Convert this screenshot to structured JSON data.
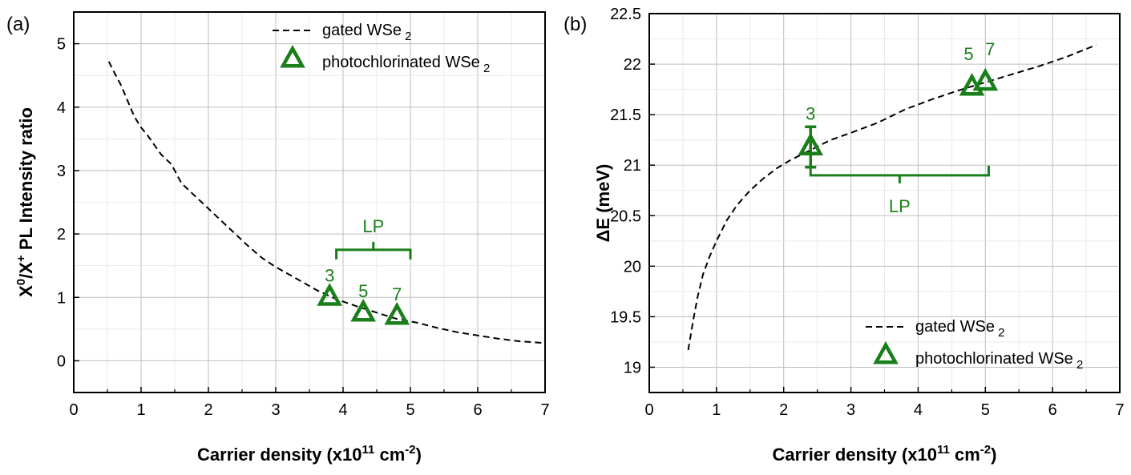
{
  "colors": {
    "marker": "#1a7f1a",
    "curve": "#000000",
    "grid": "#cfcfcf",
    "axis": "#000000"
  },
  "chart_data": [
    {
      "type": "scatter",
      "panel_label": "(a)",
      "xlabel_main": "Carrier density (x10",
      "xlabel_sup1": "11",
      "xlabel_mid": " cm",
      "xlabel_sup2": "-2",
      "xlabel_end": ")",
      "ylabel_pre": "X",
      "ylabel_sup1": "0",
      "ylabel_mid": "/X",
      "ylabel_sup2": "+",
      "ylabel_post": " PL Intensity ratio",
      "xlim": [
        0,
        7
      ],
      "ylim": [
        -0.5,
        5.5
      ],
      "xticks": [
        0,
        1,
        2,
        3,
        4,
        5,
        6,
        7
      ],
      "yticks": [
        0,
        1,
        2,
        3,
        4,
        5
      ],
      "grid": true,
      "legend_position": "top-right",
      "legend": {
        "line_label": "gated WSe",
        "line_sub": "2",
        "marker_label": "photochlorinated WSe",
        "marker_sub": "2"
      },
      "curve": {
        "name": "gated WSe2",
        "x": [
          0.52,
          0.6,
          0.7,
          0.8,
          0.9,
          1.0,
          1.1,
          1.2,
          1.3,
          1.45,
          1.6,
          1.8,
          2.0,
          2.2,
          2.4,
          2.6,
          2.8,
          3.0,
          3.3,
          3.6,
          3.9,
          4.2,
          4.5,
          4.8,
          5.1,
          5.4,
          5.7,
          6.0,
          6.3,
          6.6,
          7.0
        ],
        "y": [
          4.72,
          4.55,
          4.35,
          4.1,
          3.85,
          3.68,
          3.55,
          3.4,
          3.25,
          3.1,
          2.8,
          2.6,
          2.4,
          2.2,
          2.0,
          1.8,
          1.62,
          1.48,
          1.3,
          1.12,
          0.97,
          0.86,
          0.76,
          0.66,
          0.6,
          0.52,
          0.45,
          0.4,
          0.35,
          0.31,
          0.28
        ]
      },
      "points": [
        {
          "label": "3",
          "x": 3.8,
          "y": 1.0
        },
        {
          "label": "5",
          "x": 4.3,
          "y": 0.75
        },
        {
          "label": "7",
          "x": 4.8,
          "y": 0.7
        }
      ],
      "bracket": {
        "label": "LP",
        "x1": 3.9,
        "x2": 5.0,
        "y": 1.75
      }
    },
    {
      "type": "scatter",
      "panel_label": "(b)",
      "xlabel_main": "Carrier density (x10",
      "xlabel_sup1": "11",
      "xlabel_mid": " cm",
      "xlabel_sup2": "-2",
      "xlabel_end": ")",
      "ylabel": "ΔE (meV)",
      "xlim": [
        0,
        7
      ],
      "ylim": [
        18.75,
        22.5
      ],
      "xticks": [
        0,
        1,
        2,
        3,
        4,
        5,
        6,
        7
      ],
      "yticks": [
        19,
        19.5,
        20,
        20.5,
        21,
        21.5,
        22,
        22.5
      ],
      "grid": true,
      "legend_position": "bottom-right",
      "legend": {
        "line_label": "gated WSe",
        "line_sub": "2",
        "marker_label": "photochlorinated WSe",
        "marker_sub": "2"
      },
      "curve": {
        "name": "gated WSe2",
        "x": [
          0.58,
          0.65,
          0.72,
          0.8,
          0.9,
          1.0,
          1.15,
          1.3,
          1.5,
          1.7,
          1.9,
          2.1,
          2.4,
          2.7,
          3.0,
          3.4,
          3.8,
          4.2,
          4.6,
          5.0,
          5.4,
          5.8,
          6.2,
          6.65
        ],
        "y": [
          19.17,
          19.45,
          19.7,
          19.92,
          20.1,
          20.25,
          20.45,
          20.6,
          20.75,
          20.87,
          20.97,
          21.05,
          21.15,
          21.25,
          21.32,
          21.42,
          21.55,
          21.65,
          21.74,
          21.82,
          21.9,
          21.98,
          22.07,
          22.19
        ]
      },
      "points": [
        {
          "label": "3",
          "x": 2.4,
          "y": 21.18,
          "err": 0.2
        },
        {
          "label": "5",
          "x": 4.8,
          "y": 21.77
        },
        {
          "label": "7",
          "x": 5.0,
          "y": 21.82
        }
      ],
      "bracket": {
        "label": "LP",
        "x1": 2.4,
        "x2": 5.05,
        "y": 20.9
      }
    }
  ]
}
